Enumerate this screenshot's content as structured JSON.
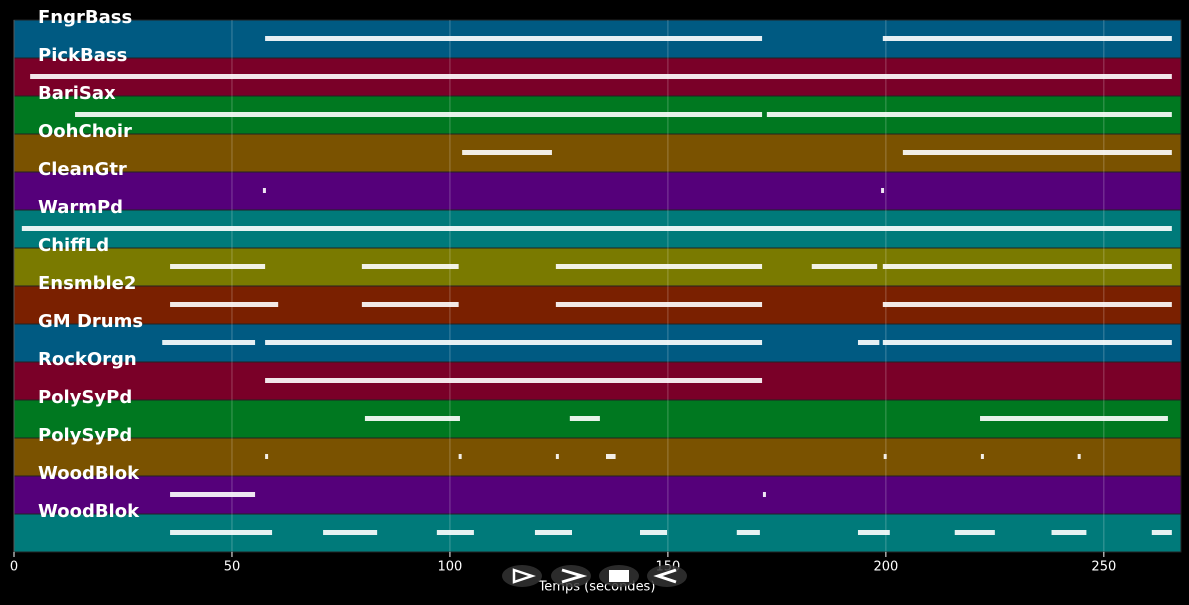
{
  "chart_data": {
    "type": "timeline",
    "x_label": "Temps (secondes)",
    "xlim": [
      0,
      267.7
    ],
    "xticks": [
      0,
      50,
      100,
      150,
      200,
      250
    ],
    "grid": true,
    "series": [
      {
        "name": "FngrBass",
        "color": "#005a82",
        "notes": [
          [
            57.6,
            171.6
          ],
          [
            199.3,
            265.6
          ]
        ]
      },
      {
        "name": "PickBass",
        "color": "#7a0028",
        "notes": [
          [
            3.7,
            265.6
          ]
        ]
      },
      {
        "name": "BariSax",
        "color": "#007820",
        "notes": [
          [
            14,
            171.6
          ],
          [
            172.7,
            265.6
          ]
        ]
      },
      {
        "name": "OohChoir",
        "color": "#7a5200",
        "notes": [
          [
            102.8,
            123.4
          ],
          [
            203.9,
            265.6
          ]
        ]
      },
      {
        "name": "CleanGtr",
        "color": "#55007a",
        "notes": [
          [
            57.1,
            57.6
          ],
          [
            198.9,
            199.4
          ]
        ]
      },
      {
        "name": "WarmPd",
        "color": "#007a7a",
        "notes": [
          [
            1.8,
            265.6
          ]
        ]
      },
      {
        "name": "ChiffLd",
        "color": "#7a7a00",
        "notes": [
          [
            35.8,
            57.6
          ],
          [
            79.8,
            102
          ],
          [
            124.3,
            171.6
          ],
          [
            183,
            198
          ],
          [
            199.3,
            265.6
          ]
        ]
      },
      {
        "name": "Ensmble2",
        "color": "#7a2000",
        "notes": [
          [
            35.8,
            60.6
          ],
          [
            79.8,
            102
          ],
          [
            124.3,
            171.6
          ],
          [
            199.3,
            265.6
          ]
        ]
      },
      {
        "name": "GM Drums",
        "color": "#005a82",
        "notes": [
          [
            34,
            55.3
          ],
          [
            57.6,
            171.6
          ],
          [
            193.6,
            198.5
          ],
          [
            199.3,
            265.6
          ]
        ]
      },
      {
        "name": "RockOrgn",
        "color": "#7a0028",
        "notes": [
          [
            57.6,
            171.6
          ]
        ]
      },
      {
        "name": "PolySyPd",
        "color": "#007820",
        "notes": [
          [
            80.5,
            102.3
          ],
          [
            127.5,
            134.4
          ],
          [
            221.6,
            264.7
          ]
        ]
      },
      {
        "name": "PolySyPd",
        "color": "#7a5200",
        "notes": [
          [
            57.6,
            58
          ],
          [
            102,
            102.4
          ],
          [
            124.3,
            124.7
          ],
          [
            135.8,
            138
          ],
          [
            199.5,
            199.9
          ],
          [
            221.8,
            222.2
          ],
          [
            244,
            244.4
          ]
        ]
      },
      {
        "name": "WoodBlok",
        "color": "#55007a",
        "notes": [
          [
            35.8,
            55.3
          ],
          [
            171.8,
            172.2
          ]
        ]
      },
      {
        "name": "WoodBlok",
        "color": "#007a7a",
        "notes": [
          [
            35.8,
            59.2
          ],
          [
            70.9,
            83.3
          ],
          [
            97,
            105.5
          ],
          [
            119.5,
            128
          ],
          [
            143.6,
            149.8
          ],
          [
            165.8,
            171.1
          ],
          [
            193.6,
            200.9
          ],
          [
            215.8,
            225
          ],
          [
            238,
            246
          ],
          [
            261,
            265.6
          ]
        ]
      }
    ]
  }
}
